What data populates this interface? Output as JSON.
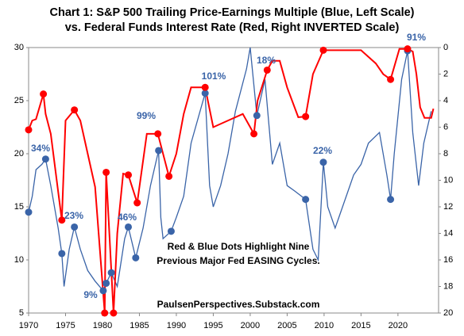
{
  "chart_data": {
    "type": "line",
    "title": [
      "Chart 1: S&P 500 Trailing Price-Earnings Multiple (Blue, Left Scale)",
      "vs. Federal Funds Interest Rate (Red, Right INVERTED Scale)"
    ],
    "xlim": [
      1970,
      2025.5
    ],
    "xticks": [
      1970,
      1975,
      1980,
      1985,
      1990,
      1995,
      2000,
      2005,
      2010,
      2015,
      2020
    ],
    "ylim": [
      5,
      30
    ],
    "yticks": [
      5,
      10,
      15,
      20,
      25,
      30
    ],
    "y2lim": [
      0,
      20
    ],
    "y2ticks": [
      0,
      2,
      4,
      6,
      8,
      10,
      12,
      14,
      16,
      18,
      20
    ],
    "y2_inverted": true,
    "series": [
      {
        "color": "#3a64a8",
        "axis": "y",
        "x": [
          1970,
          1970.5,
          1971,
          1971.8,
          1972.3,
          1973,
          1974,
          1974.5,
          1974.8,
          1975.5,
          1976.2,
          1977,
          1978,
          1979,
          1980.1,
          1980.5,
          1981.2,
          1982,
          1983,
          1983.5,
          1984.5,
          1985.5,
          1986.5,
          1987.6,
          1987.9,
          1988.2,
          1989.3,
          1990,
          1991,
          1992,
          1993.9,
          1994.5,
          1995,
          1996,
          1997,
          1998,
          1999.5,
          2000,
          2000.9,
          2002,
          2003,
          2004,
          2005,
          2006,
          2007.5,
          2008.5,
          2009.2,
          2009.9,
          2010.5,
          2011.5,
          2012,
          2013,
          2014,
          2015,
          2016,
          2017.5,
          2018.5,
          2019,
          2019.5,
          2020.5,
          2021.3,
          2022,
          2022.8,
          2023.5,
          2024.5
        ],
        "values": [
          14.5,
          16,
          18.5,
          19,
          19.5,
          17,
          13,
          10.6,
          7.5,
          11,
          13.1,
          11,
          9,
          8,
          7.1,
          7.8,
          8.8,
          7.5,
          12,
          13.1,
          10.2,
          13,
          17,
          20.3,
          14,
          12,
          12.7,
          14,
          16,
          21,
          25.7,
          17,
          15,
          17,
          20,
          24,
          28,
          30,
          23.6,
          27,
          19,
          21,
          17,
          16.5,
          15.7,
          11,
          10,
          19.2,
          15,
          13,
          14,
          16,
          18,
          19,
          21,
          22,
          18,
          15.7,
          20,
          27,
          29.7,
          22,
          17,
          21,
          24
        ]
      },
      {
        "color": "#ff0000",
        "axis": "y2",
        "x": [
          1970,
          1970.5,
          1971,
          1972,
          1972.3,
          1973,
          1974.5,
          1975,
          1976.2,
          1977,
          1978,
          1979,
          1980.3,
          1980.5,
          1981.5,
          1982,
          1982.8,
          1983.5,
          1984.7,
          1986,
          1987,
          1987.5,
          1989,
          1990,
          1991,
          1992,
          1993.9,
          1995,
          1997,
          1999,
          2000.5,
          2001,
          2002.3,
          2003,
          2004,
          2005,
          2006.5,
          2007.5,
          2008.5,
          2009.9,
          2015,
          2017,
          2018,
          2019,
          2020.2,
          2021.3,
          2022,
          2022.5,
          2023,
          2023.6,
          2024.5,
          2024.8
        ],
        "values": [
          6.2,
          5.5,
          5.4,
          3.5,
          5,
          6.5,
          13,
          5.5,
          4.7,
          5.5,
          8,
          10.5,
          20,
          9.4,
          20,
          14,
          9.5,
          9.6,
          11.7,
          6.5,
          6.5,
          6.5,
          9.7,
          8,
          5,
          3,
          3,
          6,
          5.5,
          5,
          6.5,
          4,
          1.7,
          1,
          1,
          3,
          5.25,
          5.2,
          2,
          0.2,
          0.2,
          1.2,
          2,
          2.4,
          0.1,
          0.1,
          0.3,
          2,
          4.5,
          5.3,
          5.3,
          4.6
        ]
      }
    ],
    "markers": [
      {
        "color": "#3a64a8",
        "axis": "y",
        "x": [
          1970,
          1972.3,
          1974.5,
          1976.2,
          1980.1,
          1980.5,
          1981.2,
          1983.5,
          1984.5,
          1987.6,
          1989.3,
          1993.9,
          2000.9,
          2007.5,
          2009.9,
          2019,
          2021.3
        ],
        "values": [
          14.5,
          19.5,
          10.6,
          13.1,
          7.1,
          7.8,
          8.8,
          13.1,
          10.2,
          20.3,
          12.7,
          25.7,
          23.6,
          15.7,
          19.2,
          15.7,
          29.7
        ]
      },
      {
        "color": "#ff0000",
        "axis": "y2",
        "x": [
          1970,
          1972,
          1974.5,
          1976.2,
          1980.3,
          1980.5,
          1981.5,
          1983.5,
          1984.7,
          1987.5,
          1989,
          1993.9,
          2000.5,
          2002.3,
          2007.5,
          2009.9,
          2019,
          2021.3
        ],
        "values": [
          6.2,
          3.5,
          13,
          4.7,
          20,
          9.4,
          20,
          9.6,
          11.7,
          6.5,
          9.7,
          3,
          6.5,
          1.7,
          5.2,
          0.2,
          2.4,
          0.1
        ]
      }
    ],
    "annotations": [
      "34%",
      "23%",
      "9%",
      "46%",
      "99%",
      "101%",
      "18%",
      "22%",
      "91%"
    ],
    "note": [
      "Red & Blue Dots Highlight Nine",
      "Previous Major Fed EASING Cycles."
    ],
    "source": "PaulsenPerspectives.Substack.com"
  }
}
